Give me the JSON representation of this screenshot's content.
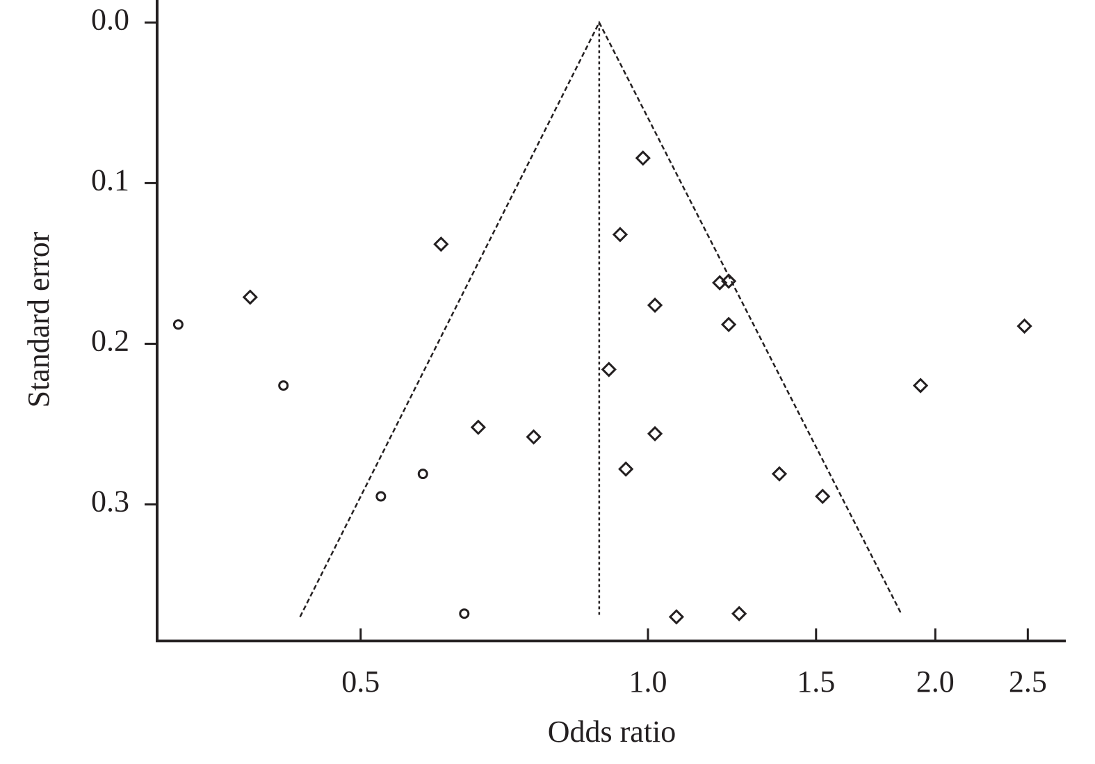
{
  "chart_data": {
    "type": "scatter",
    "x_label": "Odds ratio",
    "y_label": "Standard error",
    "xscale": "log",
    "xlim": [
      0.306,
      2.74
    ],
    "xticks": [
      0.5,
      {
        "value": 1,
        "label": "1.0"
      },
      1.5,
      {
        "value": 2,
        "label": "2.0"
      },
      2.5
    ],
    "ylim": [
      -0.014,
      0.385
    ],
    "y_inverted": true,
    "yticks": [
      {
        "value": 0,
        "label": "0.0"
      },
      0.1,
      0.2,
      0.3
    ],
    "funnel": {
      "x": [
        0.432,
        0.889,
        1.842
      ],
      "y": [
        0.37,
        0,
        0.368
      ]
    },
    "pooled": {
      "x": [
        0.889,
        0.889
      ],
      "y": [
        0,
        0.37
      ]
    },
    "series": [
      {
        "marker": "diamond",
        "color": "#231f20",
        "x": [
          0.988,
          0.935,
          0.607,
          0.383,
          1.189,
          1.215,
          1.017,
          1.215,
          2.48,
          0.91,
          1.93,
          0.664,
          0.759,
          1.017,
          0.948,
          1.373,
          1.524,
          1.071,
          1.246
        ],
        "values": [
          0.0844,
          0.132,
          0.138,
          0.171,
          0.162,
          0.161,
          0.176,
          0.188,
          0.189,
          0.216,
          0.226,
          0.252,
          0.258,
          0.256,
          0.278,
          0.281,
          0.295,
          0.37,
          0.368
        ]
      },
      {
        "marker": "circle",
        "color": "#231f20",
        "x": [
          0.322,
          0.415,
          0.581,
          0.525,
          0.642
        ],
        "values": [
          0.188,
          0.226,
          0.281,
          0.295,
          0.368
        ]
      }
    ]
  }
}
